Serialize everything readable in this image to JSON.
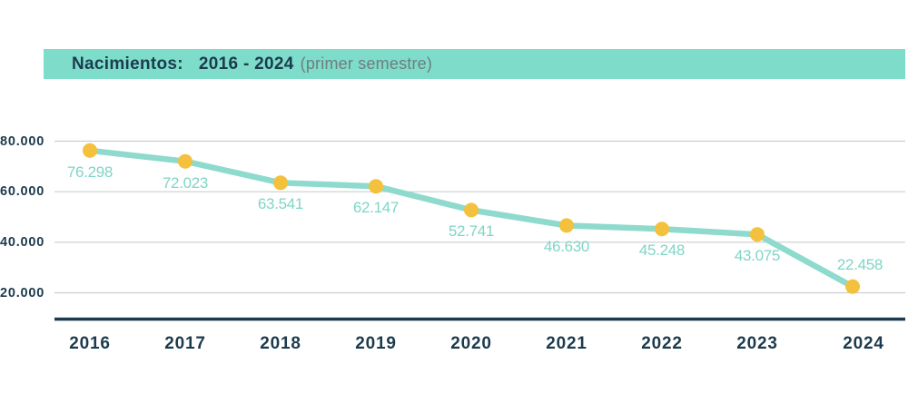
{
  "header": {
    "label": "Nacimientos:",
    "range": "2016 - 2024",
    "note": "(primer semestre)",
    "bg_color": "#7EDCCB",
    "label_color": "#1C3B4D",
    "note_color": "#6F7D7D"
  },
  "chart_data": {
    "type": "line",
    "title": "Nacimientos: 2016 - 2024 (primer semestre)",
    "categories": [
      "2016",
      "2017",
      "2018",
      "2019",
      "2020",
      "2021",
      "2022",
      "2023",
      "2024"
    ],
    "series": [
      {
        "name": "Nacimientos",
        "values": [
          76298,
          72023,
          63541,
          62147,
          52741,
          46630,
          45248,
          43075,
          22458
        ]
      }
    ],
    "point_labels": [
      "76.298",
      "72.023",
      "63.541",
      "62.147",
      "52.741",
      "46.630",
      "45.248",
      "43.075",
      "22.458"
    ],
    "y_ticks": [
      {
        "value": 80000,
        "label": "80.000"
      },
      {
        "value": 60000,
        "label": "60.000"
      },
      {
        "value": 40000,
        "label": "40.000"
      },
      {
        "value": 20000,
        "label": "20.000"
      }
    ],
    "ylim": [
      20000,
      80000
    ],
    "grid": true,
    "legend": "none",
    "xlabel": "",
    "ylabel": "",
    "colors": {
      "line": "#8EDACC",
      "point": "#F3C13D",
      "point_label": "#7FD5C6",
      "axis": "#1C3B4D",
      "grid": "#CACED0",
      "tick_text": "#1C3B4D"
    }
  }
}
